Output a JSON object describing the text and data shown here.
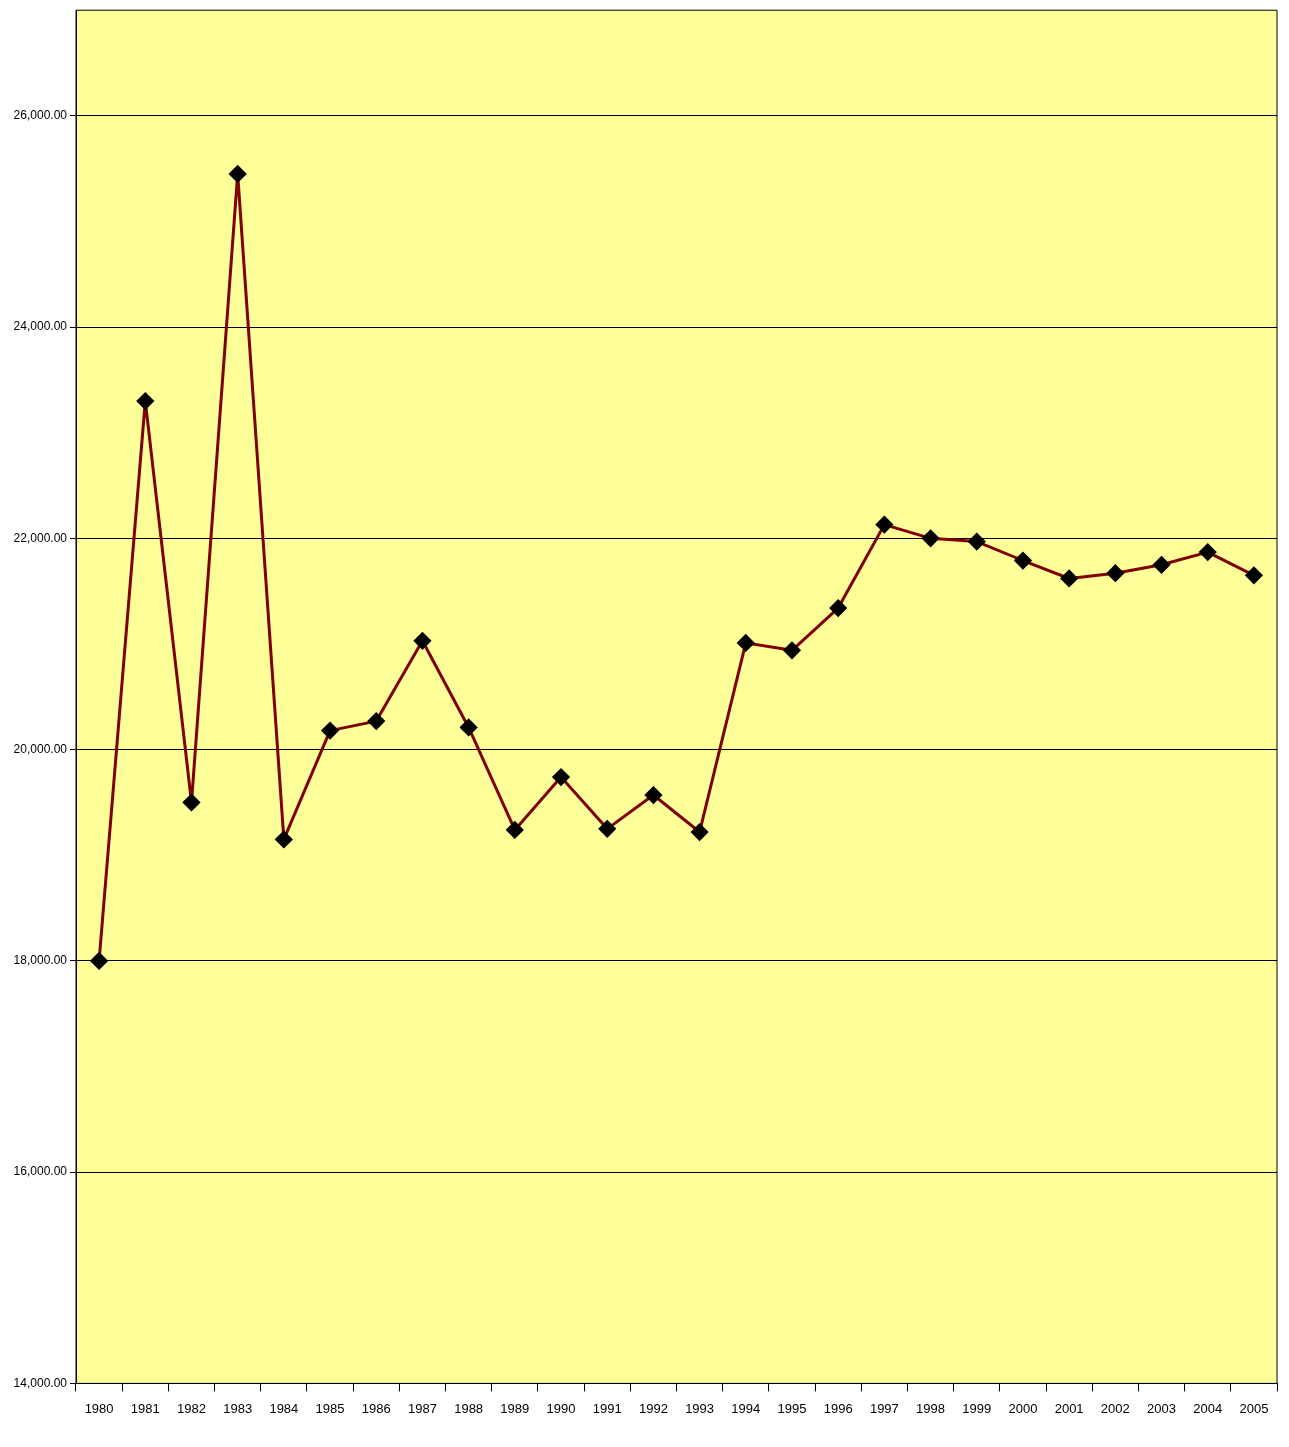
{
  "chart_data": {
    "type": "line",
    "categories": [
      "1980",
      "1981",
      "1982",
      "1983",
      "1984",
      "1985",
      "1986",
      "1987",
      "1988",
      "1989",
      "1990",
      "1991",
      "1992",
      "1993",
      "1994",
      "1995",
      "1996",
      "1997",
      "1998",
      "1999",
      "2000",
      "2001",
      "2002",
      "2003",
      "2004",
      "2005"
    ],
    "series": [
      {
        "color": "#800000",
        "values": [
          18000,
          23300,
          19500,
          25450,
          19150,
          20180,
          20270,
          21030,
          20210,
          19240,
          19740,
          19250,
          19570,
          19220,
          21010,
          20940,
          21340,
          22130,
          22000,
          21970,
          21790,
          21620,
          21670,
          21750,
          21870,
          21650
        ]
      }
    ],
    "ylim": [
      14000,
      27000
    ],
    "yticks": [
      {
        "value": 14000,
        "label": "14,000.00"
      },
      {
        "value": 16000,
        "label": "16,000.00"
      },
      {
        "value": 18000,
        "label": "18,000.00"
      },
      {
        "value": 20000,
        "label": "20,000.00"
      },
      {
        "value": 22000,
        "label": "22,000.00"
      },
      {
        "value": 24000,
        "label": "24,000.00"
      },
      {
        "value": 26000,
        "label": "26,000.00"
      }
    ],
    "grid": "y",
    "legend": false,
    "marker": "diamond",
    "line_style": "solid"
  }
}
